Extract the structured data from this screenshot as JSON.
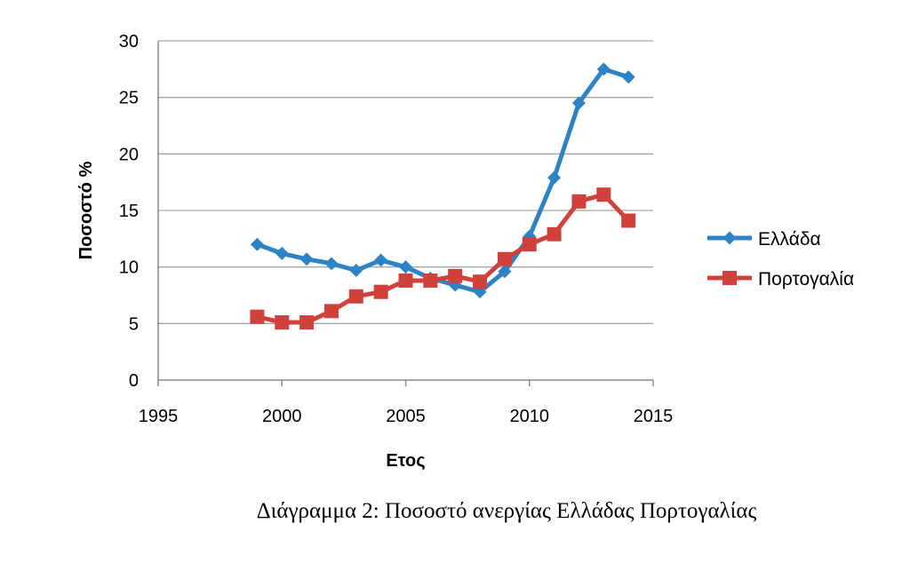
{
  "caption": "Διάγραμμα 2: Ποσοστό ανεργίας Ελλάδας Πορτογαλίας",
  "chart_data": {
    "type": "line",
    "title": "",
    "xlabel": "Ετος",
    "ylabel": "Ποσοστό %",
    "xlim": [
      1995,
      2015
    ],
    "ylim": [
      0,
      30
    ],
    "xticks": [
      1995,
      2000,
      2005,
      2010,
      2015
    ],
    "yticks": [
      0,
      5,
      10,
      15,
      20,
      25,
      30
    ],
    "grid": true,
    "legend_position": "right",
    "series": [
      {
        "name": "Ελλάδα",
        "color": "#2e83c4",
        "marker": "diamond",
        "x": [
          1999,
          2000,
          2001,
          2002,
          2003,
          2004,
          2005,
          2006,
          2007,
          2008,
          2009,
          2010,
          2011,
          2012,
          2013,
          2014
        ],
        "values": [
          12.0,
          11.2,
          10.7,
          10.3,
          9.7,
          10.6,
          10.0,
          9.0,
          8.4,
          7.8,
          9.6,
          12.7,
          17.9,
          24.5,
          27.5,
          26.8
        ]
      },
      {
        "name": "Πορτογαλία",
        "color": "#d0413c",
        "marker": "square",
        "x": [
          1999,
          2000,
          2001,
          2002,
          2003,
          2004,
          2005,
          2006,
          2007,
          2008,
          2009,
          2010,
          2011,
          2012,
          2013,
          2014
        ],
        "values": [
          5.6,
          5.1,
          5.1,
          6.1,
          7.4,
          7.8,
          8.8,
          8.8,
          9.2,
          8.7,
          10.7,
          12.0,
          12.9,
          15.8,
          16.4,
          14.1
        ]
      }
    ]
  }
}
